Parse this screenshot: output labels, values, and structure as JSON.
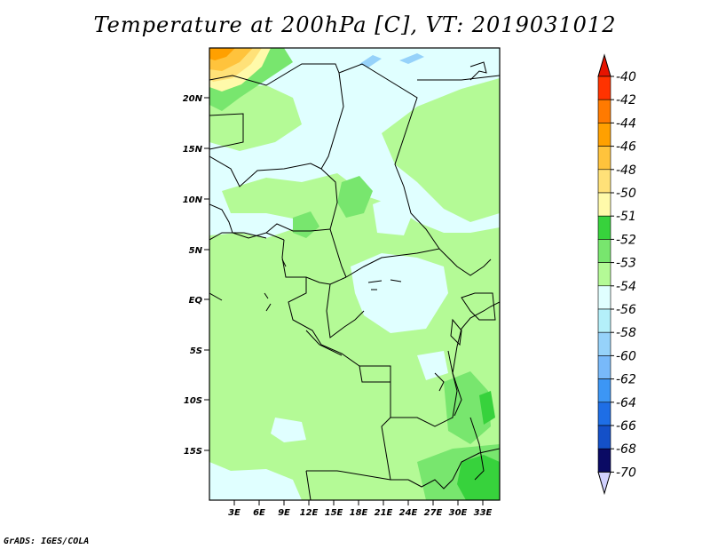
{
  "title": "Temperature at 200hPa [C], VT: 2019031012",
  "credit": "GrADS: IGES/COLA",
  "map": {
    "region": "Central Africa",
    "lon_range": [
      0,
      35
    ],
    "lat_range": [
      -20,
      25
    ],
    "lat_ticks": [
      "20N",
      "15N",
      "10N",
      "5N",
      "EQ",
      "5S",
      "10S",
      "15S"
    ],
    "lon_ticks": [
      "3E",
      "6E",
      "9E",
      "12E",
      "15E",
      "18E",
      "21E",
      "24E",
      "27E",
      "30E",
      "33E"
    ],
    "background_class": "-54",
    "background_color": "#e0ffff"
  },
  "colorbar": {
    "levels": [
      {
        "label": "-40",
        "color": "#ff3300"
      },
      {
        "label": "-42",
        "color": "#ff5500"
      },
      {
        "label": "-44",
        "color": "#ff7a00"
      },
      {
        "label": "-46",
        "color": "#ffa000"
      },
      {
        "label": "-48",
        "color": "#ffc33c"
      },
      {
        "label": "-50",
        "color": "#ffe178"
      },
      {
        "label": "-51",
        "color": "#fffaaa"
      },
      {
        "label": "-52",
        "color": "#37d23c"
      },
      {
        "label": "-53",
        "color": "#78e66e"
      },
      {
        "label": "-54",
        "color": "#b4fa96"
      },
      {
        "label": "-56",
        "color": "#e0ffff"
      },
      {
        "label": "-58",
        "color": "#b4f0fa"
      },
      {
        "label": "-60",
        "color": "#96d2fa"
      },
      {
        "label": "-62",
        "color": "#78b9fa"
      },
      {
        "label": "-64",
        "color": "#3c96f5"
      },
      {
        "label": "-66",
        "color": "#1e6ee6"
      },
      {
        "label": "-68",
        "color": "#1450c8"
      },
      {
        "label": "-70",
        "color": "#0a2896"
      }
    ],
    "top_triangle_color": "#e61400",
    "bottom_triangle_color": "#d2d2ff",
    "bottom_band_color": "#0a0a64"
  }
}
